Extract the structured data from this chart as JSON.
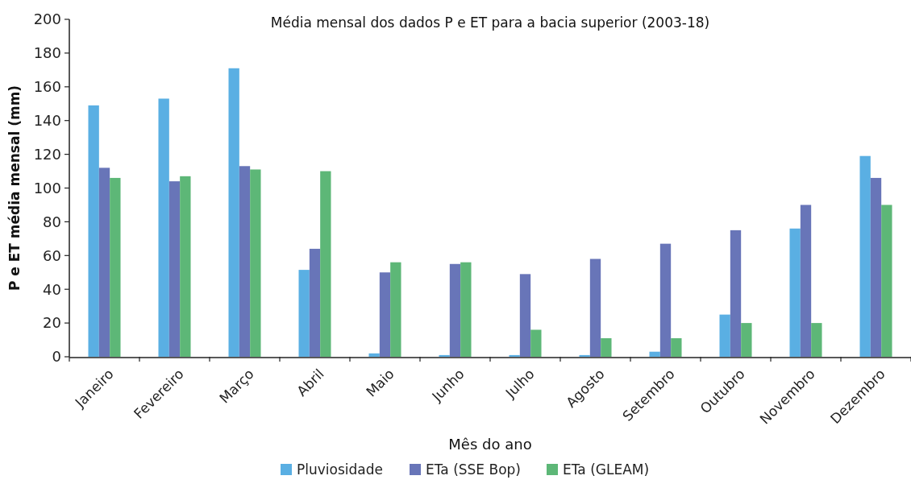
{
  "chart_data": {
    "type": "bar",
    "title": "Média mensal dos dados P e ET para a bacia superior (2003-18)",
    "xlabel": "Mês do ano",
    "ylabel": "P e ET média mensal (mm)",
    "categories": [
      "Janeiro",
      "Fevereiro",
      "Março",
      "Abril",
      "Maio",
      "Junho",
      "Julho",
      "Agosto",
      "Setembro",
      "Outubro",
      "Novembro",
      "Dezembro"
    ],
    "series": [
      {
        "name": "Pluviosidade",
        "color": "#5aafe3",
        "values": [
          149,
          153,
          171,
          51.5,
          2,
          1,
          1,
          1,
          3,
          25,
          76,
          119
        ]
      },
      {
        "name": "ETa (SSE Bop)",
        "color": "#6875b8",
        "values": [
          112,
          104,
          113,
          64,
          50,
          55,
          49,
          58,
          67,
          75,
          90,
          106
        ]
      },
      {
        "name": "ETa (GLEAM)",
        "color": "#5db777",
        "values": [
          106,
          107,
          111,
          110,
          56,
          56,
          16,
          11,
          11,
          20,
          20,
          90
        ]
      }
    ],
    "ylim": [
      0,
      200
    ],
    "yticks": [
      0,
      20,
      40,
      60,
      80,
      100,
      120,
      140,
      160,
      180,
      200
    ],
    "grid": false,
    "legend": "bottom"
  }
}
